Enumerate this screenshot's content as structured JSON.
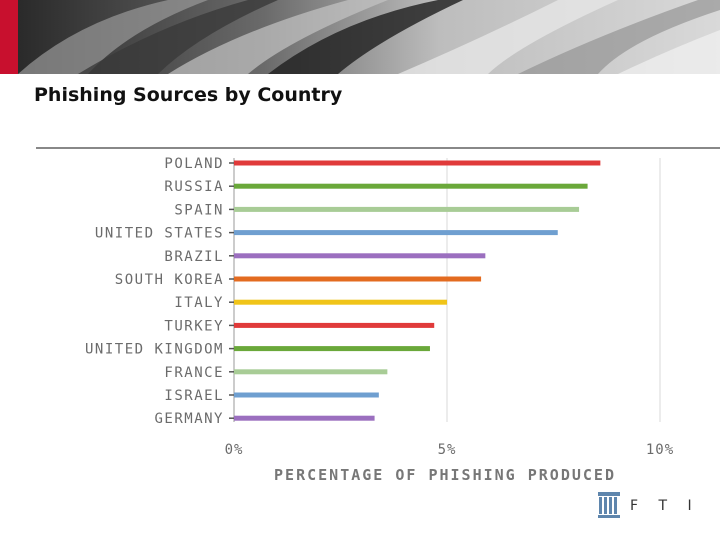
{
  "slide": {
    "title": "Phishing Sources by Country"
  },
  "chart_data": {
    "type": "bar",
    "orientation": "horizontal",
    "title": "",
    "categories": [
      "POLAND",
      "RUSSIA",
      "SPAIN",
      "UNITED STATES",
      "BRAZIL",
      "SOUTH KOREA",
      "ITALY",
      "TURKEY",
      "UNITED KINGDOM",
      "FRANCE",
      "ISRAEL",
      "GERMANY"
    ],
    "values": [
      8.6,
      8.3,
      8.1,
      7.6,
      5.9,
      5.8,
      5.0,
      4.7,
      4.6,
      3.6,
      3.4,
      3.3
    ],
    "colors": [
      "#e03a3a",
      "#6aa83a",
      "#a8cc96",
      "#6f9fd0",
      "#9b6fbf",
      "#e36b20",
      "#f0c419",
      "#e03a3a",
      "#6aa83a",
      "#a8cc96",
      "#6f9fd0",
      "#9b6fbf"
    ],
    "xlim": [
      0,
      10
    ],
    "xticks": [
      "0%",
      "5%",
      "10%"
    ],
    "xlabel": "PERCENTAGE OF PHISHING PRODUCED",
    "ylabel": "",
    "grid": true
  },
  "logo": {
    "text": "F T I",
    "icon": "building-columns-icon"
  }
}
